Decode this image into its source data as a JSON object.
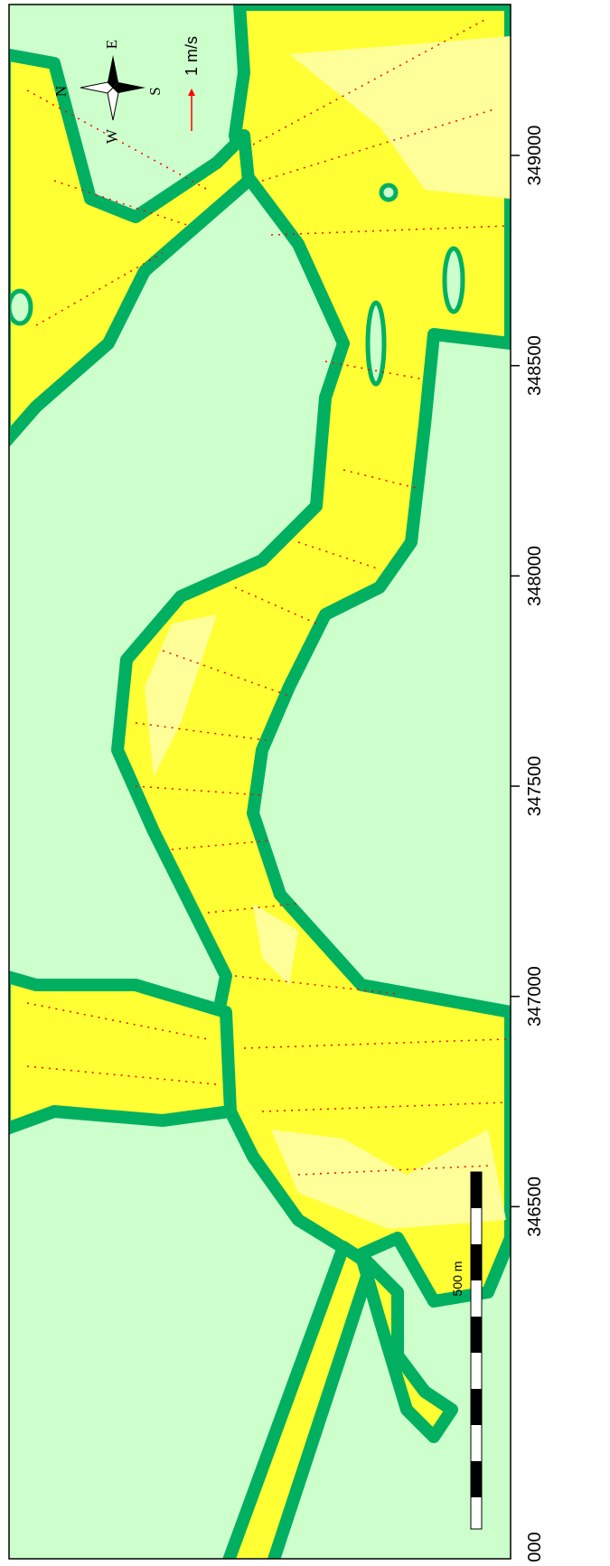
{
  "map": {
    "axis": {
      "ticks": [
        346500,
        347000,
        347500,
        348000,
        348500,
        349000
      ],
      "lim": [
        346000,
        349000
      ]
    },
    "edge_label": "000",
    "compass": {
      "north": "N",
      "east": "E",
      "south": "S",
      "west": "W"
    },
    "velocity_legend": "1 m/s",
    "scale_bar_label": "500 m"
  }
}
